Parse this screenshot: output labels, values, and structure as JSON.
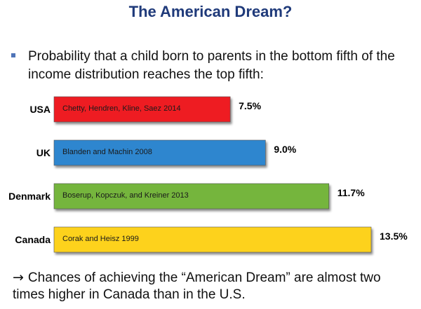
{
  "title": "The American Dream?",
  "bullet": "Probability that a child born to parents in the bottom fifth of the income distribution reaches the top fifth:",
  "conclusion": {
    "arrow": "→",
    "text": "Chances of achieving the “American Dream” are almost two times higher in Canada than in the U.S."
  },
  "chart_data": {
    "type": "bar",
    "orientation": "horizontal",
    "categories": [
      "USA",
      "UK",
      "Denmark",
      "Canada"
    ],
    "values": [
      7.5,
      9.0,
      11.7,
      13.5
    ],
    "value_labels": [
      "7.5%",
      "9.0%",
      "11.7%",
      "13.5%"
    ],
    "bar_labels": [
      "Chetty, Hendren, Kline, Saez 2014",
      "Blanden and Machin 2008",
      "Boserup, Kopczuk, and Kreiner 2013",
      "Corak and Heisz 1999"
    ],
    "colors": [
      "#ee1c24",
      "#2e86cf",
      "#74b53e",
      "#fdd21a"
    ],
    "unit": "%",
    "xlim": [
      0,
      13.5
    ]
  }
}
